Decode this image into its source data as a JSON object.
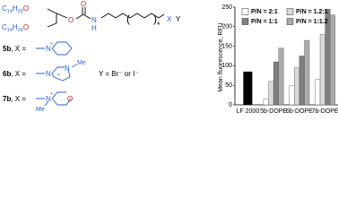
{
  "structure": {
    "chain_1": [
      "C",
      "14",
      "H",
      "29",
      "O"
    ],
    "chain_2": [
      "C",
      "14",
      "H",
      "29",
      "O"
    ],
    "atoms": [
      "O",
      "O",
      "N",
      "H",
      "(",
      ")",
      "4",
      "X",
      "Y"
    ],
    "compounds": [
      {
        "id": "5b",
        "label": ", X =",
        "atoms": [
          "N",
          "+"
        ]
      },
      {
        "id": "6b",
        "label": ", X =",
        "atoms": [
          "N",
          "+",
          "N",
          "Me"
        ]
      },
      {
        "id": "7b",
        "label": ", X =",
        "atoms": [
          "N",
          "+",
          "Me",
          "O"
        ]
      }
    ],
    "counter_ion": "Y = Br⁻ or I⁻"
  },
  "chart_data": {
    "type": "bar",
    "ylabel": "Mean fluorescence, RFU",
    "categories": [
      "LF 2000",
      "5b-DOPE",
      "6b-DOPE",
      "7b-DOPE"
    ],
    "single_values": [
      85,
      null,
      null,
      null
    ],
    "single_color": "#000000",
    "series": [
      {
        "name": "P/N = 2:1",
        "color": "#ffffff",
        "values": [
          null,
          15,
          50,
          65
        ]
      },
      {
        "name": "P/N = 1.2:1",
        "color": "#d9d9d9",
        "values": [
          null,
          60,
          95,
          180
        ]
      },
      {
        "name": "P/N = 1:1",
        "color": "#7f7f7f",
        "values": [
          null,
          110,
          125,
          245
        ]
      },
      {
        "name": "P/N = 1:1.2",
        "color": "#ababab",
        "values": [
          null,
          145,
          165,
          230
        ]
      }
    ],
    "ylim": [
      0,
      250
    ],
    "yticks": [
      0,
      50,
      100,
      150,
      200,
      250
    ],
    "grid": false,
    "legend": "top"
  }
}
